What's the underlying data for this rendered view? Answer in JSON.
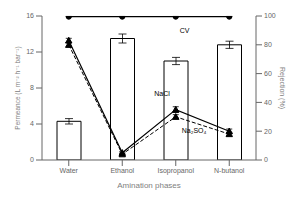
{
  "chart_data": {
    "type": "bar",
    "xlabel": "Amination phases",
    "ylabel": "Permeance (L m⁻² h⁻¹ bar⁻¹)",
    "y2label": "Rejection (%)",
    "categories": [
      "Water",
      "Ethanol",
      "Isopropanol",
      "N-butanol"
    ],
    "ylim": [
      0,
      16
    ],
    "yticks": [
      0,
      4,
      8,
      12,
      16
    ],
    "y2lim": [
      0,
      100
    ],
    "y2ticks": [
      0,
      20,
      40,
      60,
      80,
      100
    ],
    "grid": false,
    "series": [
      {
        "type": "bar",
        "color": "white",
        "values": [
          4.3,
          13.5,
          11.0,
          12.8
        ],
        "errors": [
          0.3,
          0.5,
          0.4,
          0.4
        ]
      },
      {
        "type": "line",
        "axis": "y2",
        "annotation": "CV",
        "color": "black",
        "marker": "circle",
        "line_style": "solid",
        "values": [
          99.5,
          99.5,
          99.5,
          99.5
        ],
        "errors": [
          0.2,
          0.2,
          0.2,
          0.2
        ]
      },
      {
        "type": "line",
        "axis": "y2",
        "annotation": "NaCl",
        "color": "black",
        "marker": "triangle",
        "line_style": "solid",
        "values": [
          83.0,
          5.0,
          35.0,
          20.0
        ],
        "errors": [
          1.5,
          0.8,
          2.0,
          1.5
        ]
      },
      {
        "type": "line",
        "axis": "y2",
        "annotation": "Na₂SO₄",
        "color": "black",
        "marker": "triangle",
        "line_style": "dashed",
        "values": [
          80.0,
          4.0,
          30.0,
          18.0
        ],
        "errors": [
          1.5,
          0.8,
          1.5,
          1.2
        ]
      }
    ]
  }
}
